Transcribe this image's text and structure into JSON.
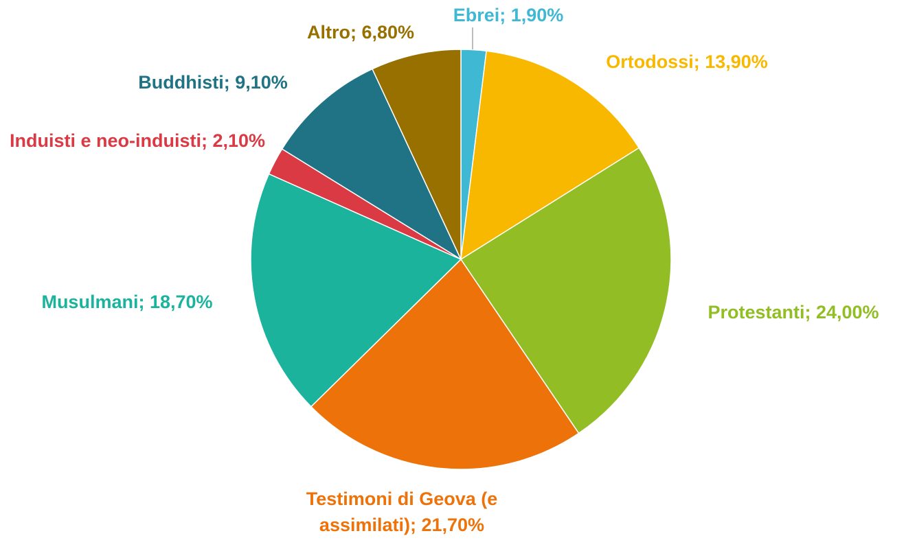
{
  "chart_data": {
    "type": "pie",
    "categories": [
      "Ebrei",
      "Ortodossi",
      "Protestanti",
      "Testimoni di Geova (e assimilati)",
      "Musulmani",
      "Induisti e neo-induisti",
      "Buddhisti",
      "Altro"
    ],
    "values": [
      1.9,
      13.9,
      24.0,
      21.7,
      18.7,
      2.1,
      9.1,
      6.8
    ],
    "value_labels": [
      "1,90%",
      "13,90%",
      "24,00%",
      "21,70%",
      "18,70%",
      "2,10%",
      "9,10%",
      "6,80%"
    ],
    "label_separator": "; ",
    "colors": [
      "#3fb8d4",
      "#f9b800",
      "#92bd25",
      "#ec7209",
      "#1bb39c",
      "#d93a44",
      "#1f7384",
      "#977000"
    ]
  }
}
